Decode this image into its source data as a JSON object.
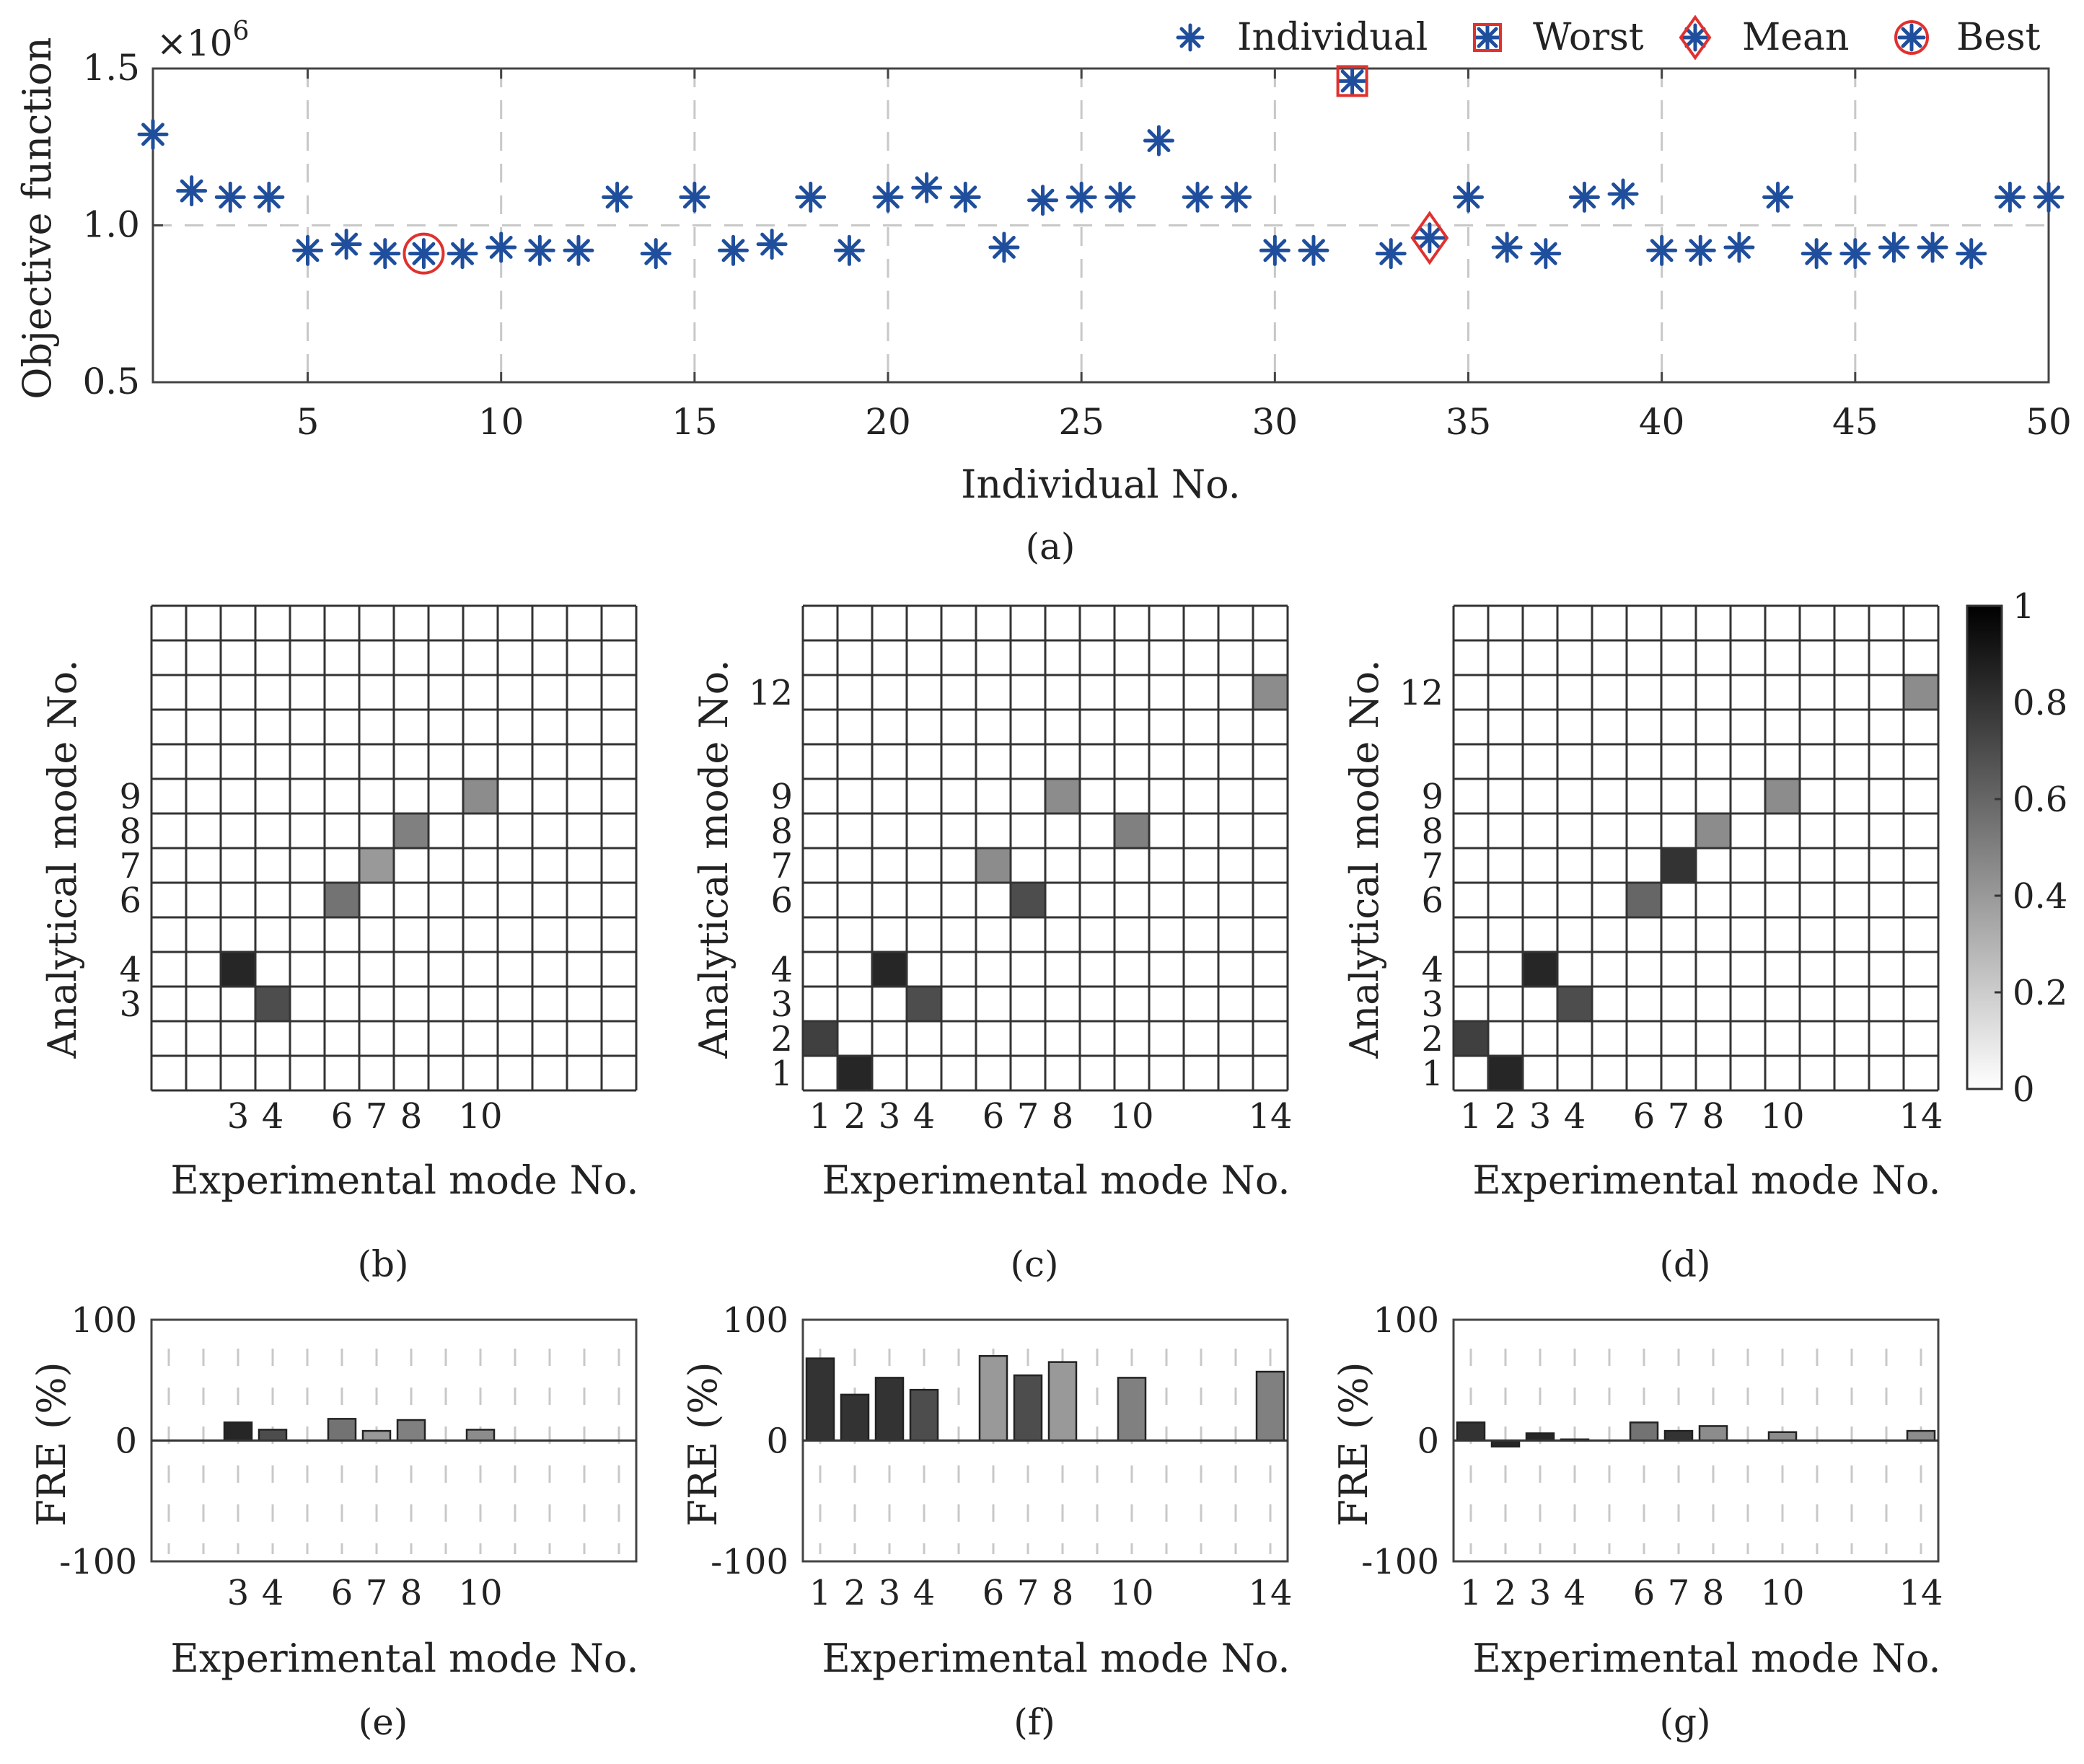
{
  "colors": {
    "marker": "#1f4e9c",
    "highlight": "#e0312f",
    "axis": "#444444",
    "grid": "#c8c8c8"
  },
  "chart_data": [
    {
      "id": "a",
      "type": "scatter",
      "caption": "(a)",
      "title": "",
      "xlabel": "Individual No.",
      "ylabel": "Objective function",
      "y_multiplier": "×10^6",
      "xlim": [
        1,
        50
      ],
      "ylim": [
        0.5,
        1.5
      ],
      "xticks": [
        5,
        10,
        15,
        20,
        25,
        30,
        35,
        40,
        45,
        50
      ],
      "yticks": [
        0.5,
        1.0,
        1.5
      ],
      "legend": [
        "Individual",
        "Worst",
        "Mean",
        "Best"
      ],
      "legend_position": "top-right",
      "x": [
        1,
        2,
        3,
        4,
        5,
        6,
        7,
        8,
        9,
        10,
        11,
        12,
        13,
        14,
        15,
        16,
        17,
        18,
        19,
        20,
        21,
        22,
        23,
        24,
        25,
        26,
        27,
        28,
        29,
        30,
        31,
        32,
        33,
        34,
        35,
        36,
        37,
        38,
        39,
        40,
        41,
        42,
        43,
        44,
        45,
        46,
        47,
        48,
        49,
        50
      ],
      "values": [
        1.29,
        1.11,
        1.09,
        1.09,
        0.92,
        0.94,
        0.91,
        0.91,
        0.91,
        0.93,
        0.92,
        0.92,
        1.09,
        0.91,
        1.09,
        0.92,
        0.94,
        1.09,
        0.92,
        1.09,
        1.12,
        1.09,
        0.93,
        1.08,
        1.09,
        1.09,
        1.27,
        1.09,
        1.09,
        0.92,
        0.92,
        1.46,
        0.91,
        0.96,
        1.09,
        0.93,
        0.91,
        1.09,
        1.1,
        0.92,
        0.92,
        0.93,
        1.09,
        0.91,
        0.91,
        0.93,
        0.93,
        0.91,
        1.09,
        1.09
      ],
      "worst_index": 32,
      "mean_index": 34,
      "best_index": 8
    },
    {
      "id": "b",
      "type": "heatmap",
      "caption": "(b)",
      "xlabel": "Experimental mode No.",
      "ylabel": "Analytical mode No.",
      "cols": 14,
      "rows": 14,
      "xticks": [
        3,
        4,
        6,
        7,
        8,
        10
      ],
      "yticks": [
        3,
        4,
        6,
        7,
        8,
        9
      ],
      "cells": [
        [
          3,
          4,
          0.85
        ],
        [
          4,
          3,
          0.7
        ],
        [
          6,
          6,
          0.55
        ],
        [
          7,
          7,
          0.4
        ],
        [
          8,
          8,
          0.5
        ],
        [
          10,
          9,
          0.45
        ]
      ]
    },
    {
      "id": "c",
      "type": "heatmap",
      "caption": "(c)",
      "xlabel": "Experimental mode No.",
      "ylabel": "Analytical mode No.",
      "cols": 14,
      "rows": 14,
      "xticks": [
        1,
        2,
        3,
        4,
        6,
        7,
        8,
        10,
        14
      ],
      "yticks": [
        1,
        2,
        3,
        4,
        6,
        7,
        8,
        9,
        12
      ],
      "cells": [
        [
          1,
          2,
          0.75
        ],
        [
          2,
          1,
          0.85
        ],
        [
          3,
          4,
          0.85
        ],
        [
          4,
          3,
          0.7
        ],
        [
          6,
          7,
          0.45
        ],
        [
          7,
          6,
          0.7
        ],
        [
          8,
          9,
          0.45
        ],
        [
          10,
          8,
          0.5
        ],
        [
          14,
          12,
          0.45
        ]
      ]
    },
    {
      "id": "d",
      "type": "heatmap",
      "caption": "(d)",
      "xlabel": "Experimental mode No.",
      "ylabel": "Analytical mode No.",
      "cols": 14,
      "rows": 14,
      "xticks": [
        1,
        2,
        3,
        4,
        6,
        7,
        8,
        10,
        14
      ],
      "yticks": [
        1,
        2,
        3,
        4,
        6,
        7,
        8,
        9,
        12
      ],
      "cells": [
        [
          1,
          2,
          0.75
        ],
        [
          2,
          1,
          0.85
        ],
        [
          3,
          4,
          0.85
        ],
        [
          4,
          3,
          0.7
        ],
        [
          6,
          6,
          0.6
        ],
        [
          7,
          7,
          0.8
        ],
        [
          8,
          8,
          0.45
        ],
        [
          10,
          9,
          0.45
        ],
        [
          14,
          12,
          0.45
        ]
      ]
    },
    {
      "id": "e",
      "type": "bar",
      "caption": "(e)",
      "xlabel": "Experimental mode No.",
      "ylabel": "FRE (%)",
      "ylim": [
        -100,
        100
      ],
      "yticks": [
        -100,
        0,
        100
      ],
      "xticks": [
        3,
        4,
        6,
        7,
        8,
        10
      ],
      "slots": 14,
      "bars": [
        {
          "x": 3,
          "value": 15,
          "shade": 0.85
        },
        {
          "x": 4,
          "value": 9,
          "shade": 0.7
        },
        {
          "x": 6,
          "value": 18,
          "shade": 0.55
        },
        {
          "x": 7,
          "value": 8,
          "shade": 0.4
        },
        {
          "x": 8,
          "value": 17,
          "shade": 0.5
        },
        {
          "x": 10,
          "value": 9,
          "shade": 0.45
        }
      ]
    },
    {
      "id": "f",
      "type": "bar",
      "caption": "(f)",
      "xlabel": "Experimental mode No.",
      "ylabel": "FRE (%)",
      "ylim": [
        -100,
        100
      ],
      "yticks": [
        -100,
        0,
        100
      ],
      "xticks": [
        1,
        2,
        3,
        4,
        6,
        7,
        8,
        10,
        14
      ],
      "slots": 14,
      "bars": [
        {
          "x": 1,
          "value": 68,
          "shade": 0.8
        },
        {
          "x": 2,
          "value": 38,
          "shade": 0.8
        },
        {
          "x": 3,
          "value": 52,
          "shade": 0.8
        },
        {
          "x": 4,
          "value": 42,
          "shade": 0.7
        },
        {
          "x": 6,
          "value": 70,
          "shade": 0.4
        },
        {
          "x": 7,
          "value": 54,
          "shade": 0.7
        },
        {
          "x": 8,
          "value": 65,
          "shade": 0.4
        },
        {
          "x": 10,
          "value": 52,
          "shade": 0.5
        },
        {
          "x": 14,
          "value": 57,
          "shade": 0.5
        }
      ]
    },
    {
      "id": "g",
      "type": "bar",
      "caption": "(g)",
      "xlabel": "Experimental mode No.",
      "ylabel": "FRE (%)",
      "ylim": [
        -100,
        100
      ],
      "yticks": [
        -100,
        0,
        100
      ],
      "xticks": [
        1,
        2,
        3,
        4,
        6,
        7,
        8,
        10,
        14
      ],
      "slots": 14,
      "bars": [
        {
          "x": 1,
          "value": 15,
          "shade": 0.8
        },
        {
          "x": 2,
          "value": -5,
          "shade": 0.85
        },
        {
          "x": 3,
          "value": 6,
          "shade": 0.85
        },
        {
          "x": 4,
          "value": 1,
          "shade": 0.7
        },
        {
          "x": 6,
          "value": 15,
          "shade": 0.55
        },
        {
          "x": 7,
          "value": 8,
          "shade": 0.8
        },
        {
          "x": 8,
          "value": 12,
          "shade": 0.45
        },
        {
          "x": 10,
          "value": 7,
          "shade": 0.45
        },
        {
          "x": 14,
          "value": 8,
          "shade": 0.45
        }
      ]
    }
  ],
  "colorbar": {
    "min": 0,
    "max": 1,
    "ticks": [
      0,
      0.2,
      0.4,
      0.6,
      0.8,
      1
    ]
  }
}
